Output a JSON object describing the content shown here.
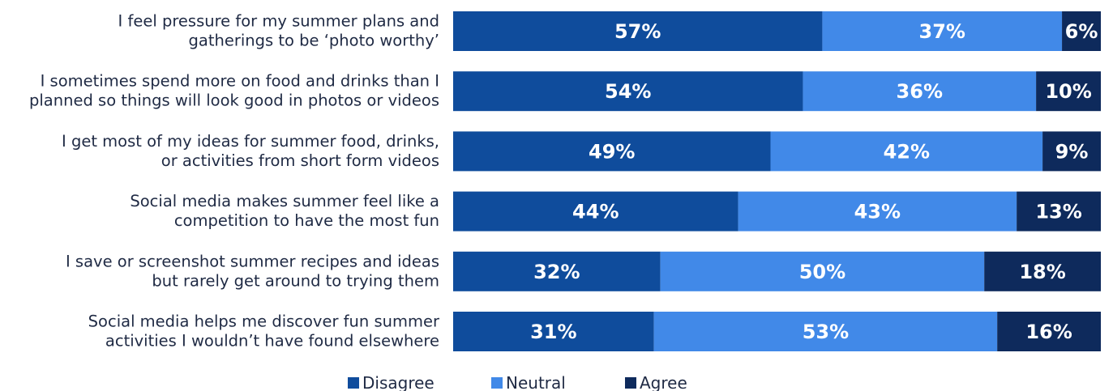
{
  "chart_data": {
    "type": "bar",
    "orientation": "horizontal",
    "stacked": true,
    "value_suffix": "%",
    "categories": [
      [
        "I feel pressure for my summer plans and",
        "gatherings to be ‘photo worthy’"
      ],
      [
        "I sometimes spend more on food and drinks than I",
        "planned so things will look good in photos or videos"
      ],
      [
        "I get most of my ideas for summer food, drinks,",
        "or activities from short form videos"
      ],
      [
        "Social media makes summer feel like a",
        "competition to have the most fun"
      ],
      [
        "I save or screenshot summer recipes and ideas",
        "but rarely get around to trying them"
      ],
      [
        "Social media helps me discover fun summer",
        "activities I wouldn’t have found elsewhere"
      ]
    ],
    "series": [
      {
        "name": "Disagree",
        "color": "#0f4c9c",
        "values": [
          57,
          54,
          49,
          44,
          32,
          31
        ]
      },
      {
        "name": "Neutral",
        "color": "#4189e8",
        "values": [
          37,
          36,
          42,
          43,
          50,
          53
        ]
      },
      {
        "name": "Agree",
        "color": "#0e2a5c",
        "values": [
          6,
          10,
          9,
          13,
          18,
          16
        ]
      }
    ],
    "xlim": [
      0,
      100
    ],
    "grid": false,
    "legend_position": "bottom"
  }
}
